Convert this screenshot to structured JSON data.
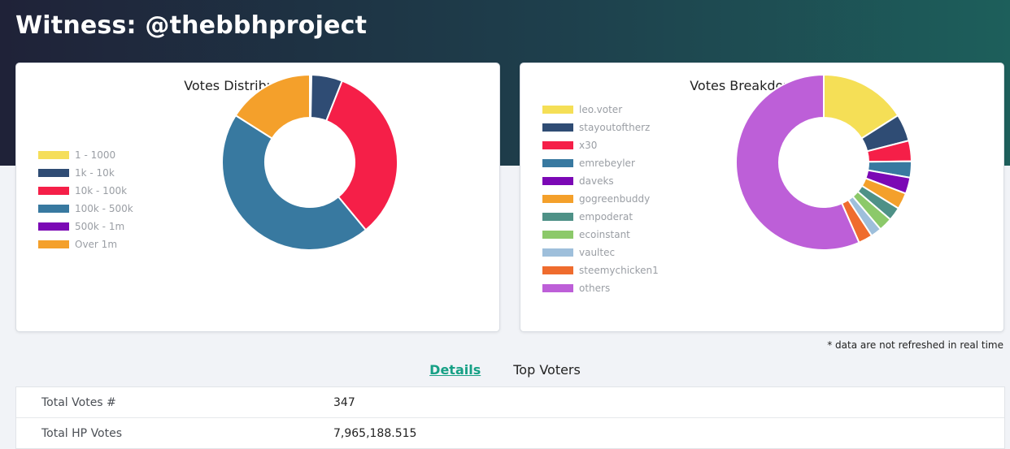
{
  "header": {
    "title": "Witness: @thebbhproject"
  },
  "chart_data": [
    {
      "type": "pie",
      "title": "Votes Distribution (HP)",
      "categories": [
        "1 - 1000",
        "1k - 10k",
        "10k - 100k",
        "100k - 500k",
        "500k - 1m",
        "Over 1m"
      ],
      "values": [
        0.3,
        5.7,
        33.0,
        45.0,
        0,
        16.0
      ],
      "colors": [
        "#f5de5a",
        "#2f4c74",
        "#f51f48",
        "#3879a0",
        "#7b08b5",
        "#f4a02b"
      ],
      "legend": "left"
    },
    {
      "type": "pie",
      "title": "Votes Breakdown (HP)",
      "categories": [
        "leo.voter",
        "stayoutoftherz",
        "x30",
        "emrebeyler",
        "daveks",
        "gogreenbuddy",
        "empoderat",
        "ecoinstant",
        "vaultec",
        "steemychicken1",
        "others"
      ],
      "values": [
        16.0,
        5.0,
        3.8,
        3.0,
        3.0,
        3.0,
        2.5,
        2.5,
        2.0,
        2.6,
        56.6
      ],
      "colors": [
        "#f5df56",
        "#2f4c74",
        "#f51f48",
        "#3879a0",
        "#7b08b5",
        "#f4a02b",
        "#4e9187",
        "#8cc96a",
        "#9ebfdb",
        "#ef6c2e",
        "#bd5fd8"
      ],
      "legend": "left"
    }
  ],
  "footnote": "* data are not refreshed in real time",
  "tabs": {
    "details": "Details",
    "top_voters": "Top Voters"
  },
  "details": {
    "total_votes_label": "Total Votes #",
    "total_votes_value": "347",
    "total_hp_label": "Total HP Votes",
    "total_hp_value": "7,965,188.515"
  }
}
